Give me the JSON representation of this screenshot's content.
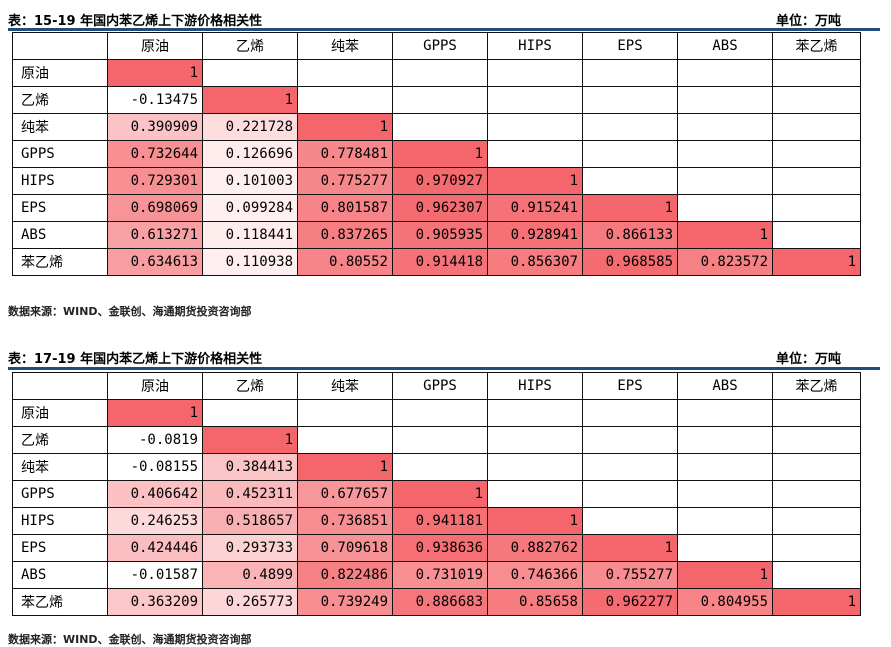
{
  "tables": [
    {
      "title": "表：15-19 年国内苯乙烯上下游价格相关性",
      "unit": "单位：万吨",
      "headers": [
        "原油",
        "乙烯",
        "纯苯",
        "GPPS",
        "HIPS",
        "EPS",
        "ABS",
        "苯乙烯"
      ],
      "rows": [
        {
          "label": "原油",
          "values": [
            "1"
          ]
        },
        {
          "label": "乙烯",
          "values": [
            "-0.13475",
            "1"
          ]
        },
        {
          "label": "纯苯",
          "values": [
            "0.390909",
            "0.221728",
            "1"
          ]
        },
        {
          "label": "GPPS",
          "values": [
            "0.732644",
            "0.126696",
            "0.778481",
            "1"
          ]
        },
        {
          "label": "HIPS",
          "values": [
            "0.729301",
            "0.101003",
            "0.775277",
            "0.970927",
            "1"
          ]
        },
        {
          "label": "EPS",
          "values": [
            "0.698069",
            "0.099284",
            "0.801587",
            "0.962307",
            "0.915241",
            "1"
          ]
        },
        {
          "label": "ABS",
          "values": [
            "0.613271",
            "0.118441",
            "0.837265",
            "0.905935",
            "0.928941",
            "0.866133",
            "1"
          ]
        },
        {
          "label": "苯乙烯",
          "values": [
            "0.634613",
            "0.110938",
            "0.80552",
            "0.914418",
            "0.856307",
            "0.968585",
            "0.823572",
            "1"
          ]
        }
      ],
      "source": "数据来源：WIND、金联创、海通期货投资咨询部"
    },
    {
      "title": "表：17-19 年国内苯乙烯上下游价格相关性",
      "unit": "单位：万吨",
      "headers": [
        "原油",
        "乙烯",
        "纯苯",
        "GPPS",
        "HIPS",
        "EPS",
        "ABS",
        "苯乙烯"
      ],
      "rows": [
        {
          "label": "原油",
          "values": [
            "1"
          ]
        },
        {
          "label": "乙烯",
          "values": [
            "-0.0819",
            "1"
          ]
        },
        {
          "label": "纯苯",
          "values": [
            "-0.08155",
            "0.384413",
            "1"
          ]
        },
        {
          "label": "GPPS",
          "values": [
            "0.406642",
            "0.452311",
            "0.677657",
            "1"
          ]
        },
        {
          "label": "HIPS",
          "values": [
            "0.246253",
            "0.518657",
            "0.736851",
            "0.941181",
            "1"
          ]
        },
        {
          "label": "EPS",
          "values": [
            "0.424446",
            "0.293733",
            "0.709618",
            "0.938636",
            "0.882762",
            "1"
          ]
        },
        {
          "label": "ABS",
          "values": [
            "-0.01587",
            "0.4899",
            "0.822486",
            "0.731019",
            "0.746366",
            "0.755277",
            "1"
          ]
        },
        {
          "label": "苯乙烯",
          "values": [
            "0.363209",
            "0.265773",
            "0.739249",
            "0.886683",
            "0.85658",
            "0.962277",
            "0.804955",
            "1"
          ]
        }
      ],
      "source": "数据来源：WIND、金联创、海通期货投资咨询部"
    }
  ],
  "colors": {
    "rule": "#1f4e79",
    "cell_high": "#f4666b",
    "cell_low": "#ffffff"
  }
}
